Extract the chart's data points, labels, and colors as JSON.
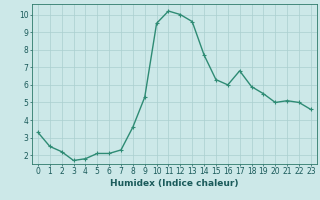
{
  "x": [
    0,
    1,
    2,
    3,
    4,
    5,
    6,
    7,
    8,
    9,
    10,
    11,
    12,
    13,
    14,
    15,
    16,
    17,
    18,
    19,
    20,
    21,
    22,
    23
  ],
  "y": [
    3.3,
    2.5,
    2.2,
    1.7,
    1.8,
    2.1,
    2.1,
    2.3,
    3.6,
    5.3,
    9.5,
    10.2,
    10.0,
    9.6,
    7.7,
    6.3,
    6.0,
    6.8,
    5.9,
    5.5,
    5.0,
    5.1,
    5.0,
    4.6
  ],
  "line_color": "#2e8b74",
  "marker": "+",
  "marker_size": 3.5,
  "bg_color": "#cce8e8",
  "grid_color": "#aacfcf",
  "xlabel": "Humidex (Indice chaleur)",
  "xlim": [
    -0.5,
    23.5
  ],
  "ylim": [
    1.5,
    10.6
  ],
  "yticks": [
    2,
    3,
    4,
    5,
    6,
    7,
    8,
    9,
    10
  ],
  "xticks": [
    0,
    1,
    2,
    3,
    4,
    5,
    6,
    7,
    8,
    9,
    10,
    11,
    12,
    13,
    14,
    15,
    16,
    17,
    18,
    19,
    20,
    21,
    22,
    23
  ],
  "tick_fontsize": 5.5,
  "xlabel_fontsize": 6.5,
  "linewidth": 1.0,
  "markeredgewidth": 0.8
}
